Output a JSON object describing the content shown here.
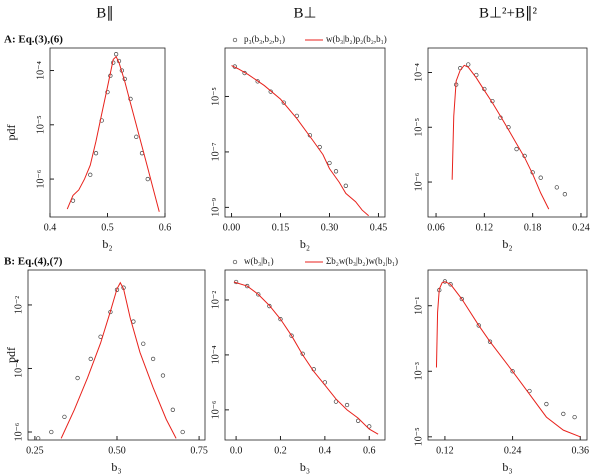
{
  "column_titles": [
    "B∥",
    "B⊥",
    "B⊥²+B∥²"
  ],
  "row_labels": [
    "A: Eq.(3),(6)",
    "B: Eq.(4),(7)"
  ],
  "chart_data": [
    {
      "type": "line",
      "log_y": true,
      "ylabel": "pdf",
      "xlabel": "b₂",
      "legend": false,
      "xlim": [
        0.4,
        0.6
      ],
      "xticks": [
        0.4,
        0.5,
        0.6
      ],
      "ylim": [
        2e-07,
        0.00026
      ],
      "yticks": [
        {
          "value": 0.0001,
          "label": "10⁻⁴"
        },
        {
          "value": 1e-05,
          "label": "10⁻⁵"
        },
        {
          "value": 1e-06,
          "label": "10⁻⁶"
        }
      ],
      "series": [
        {
          "kind": "scatter",
          "color": "#444444",
          "x": [
            0.44,
            0.47,
            0.48,
            0.49,
            0.5,
            0.505,
            0.51,
            0.515,
            0.52,
            0.525,
            0.53,
            0.54,
            0.55,
            0.56,
            0.57
          ],
          "values": [
            4e-07,
            1.2e-06,
            3e-06,
            1.2e-05,
            4e-05,
            8e-05,
            0.00014,
            0.0002,
            0.00015,
            0.0001,
            7e-05,
            3e-05,
            6e-06,
            3e-06,
            1e-06
          ]
        },
        {
          "kind": "line",
          "color": "#e8221c",
          "x": [
            0.43,
            0.44,
            0.45,
            0.46,
            0.47,
            0.48,
            0.49,
            0.5,
            0.51,
            0.515,
            0.52,
            0.53,
            0.54,
            0.55,
            0.56,
            0.57,
            0.58,
            0.59
          ],
          "values": [
            2.8e-07,
            5e-07,
            6.3e-07,
            1e-06,
            1.8e-06,
            5e-06,
            1.6e-05,
            5e-05,
            0.00016,
            0.00018,
            0.00014,
            6.3e-05,
            2.5e-05,
            1e-05,
            4e-06,
            1.6e-06,
            6.3e-07,
            2.5e-07
          ]
        }
      ]
    },
    {
      "type": "line",
      "log_y": true,
      "xlabel": "b₂",
      "legend": true,
      "xlim": [
        -0.02,
        0.47
      ],
      "xticks": [
        {
          "value": 0,
          "label": "0.00"
        },
        0.15,
        {
          "value": 0.3,
          "label": "0.30"
        },
        0.45
      ],
      "ylim": [
        4.5e-10,
        0.00056
      ],
      "yticks": [
        {
          "value": 1e-05,
          "label": "10⁻⁵"
        },
        {
          "value": 1e-07,
          "label": "10⁻⁷"
        },
        {
          "value": 1e-09,
          "label": "10⁻⁹"
        }
      ],
      "series": [
        {
          "name": "p₃(b₃,b₂,b₁)",
          "kind": "scatter",
          "color": "#444444",
          "x": [
            0.01,
            0.04,
            0.08,
            0.12,
            0.16,
            0.2,
            0.24,
            0.27,
            0.3,
            0.32,
            0.35
          ],
          "values": [
            0.00012,
            7e-05,
            3.5e-05,
            1.5e-05,
            6e-06,
            2e-06,
            4e-07,
            1.5e-07,
            4e-08,
            2e-08,
            6e-09
          ]
        },
        {
          "name": "w(b₃|b₂)p₂(b₂,b₁)",
          "kind": "line",
          "color": "#e8221c",
          "x": [
            0,
            0.02,
            0.05,
            0.1,
            0.15,
            0.2,
            0.25,
            0.28,
            0.3,
            0.33,
            0.35,
            0.38,
            0.4,
            0.42
          ],
          "values": [
            0.00013,
            0.0001,
            6.3e-05,
            2.5e-05,
            8e-06,
            1.6e-06,
            2.5e-07,
            8e-08,
            2.5e-08,
            8e-09,
            3.2e-09,
            1.6e-09,
            8e-10,
            5e-10
          ]
        }
      ]
    },
    {
      "type": "line",
      "log_y": true,
      "xlabel": "b₂",
      "legend": false,
      "xlim": [
        0.05,
        0.2475
      ],
      "xticks": [
        0.06,
        0.12,
        0.18,
        0.24
      ],
      "ylim": [
        2.3e-07,
        0.00028
      ],
      "yticks": [
        {
          "value": 0.0001,
          "label": "10⁻⁴"
        },
        {
          "value": 1e-05,
          "label": "10⁻⁵"
        },
        {
          "value": 1e-06,
          "label": "10⁻⁶"
        }
      ],
      "series": [
        {
          "kind": "scatter",
          "color": "#444444",
          "x": [
            0.085,
            0.09,
            0.1,
            0.11,
            0.12,
            0.13,
            0.14,
            0.15,
            0.16,
            0.17,
            0.18,
            0.19,
            0.21,
            0.22
          ],
          "values": [
            6e-05,
            0.00012,
            0.00014,
            9e-05,
            5e-05,
            3e-05,
            1.5e-05,
            1e-05,
            4e-06,
            3e-06,
            1.5e-06,
            1.2e-06,
            8e-07,
            6e-07
          ]
        },
        {
          "kind": "line",
          "color": "#e8221c",
          "x": [
            0.08,
            0.082,
            0.085,
            0.09,
            0.095,
            0.1,
            0.11,
            0.12,
            0.13,
            0.14,
            0.15,
            0.16,
            0.17,
            0.18,
            0.19,
            0.2
          ],
          "values": [
            1.1e-06,
            1.6e-05,
            7e-05,
            0.00011,
            0.000135,
            0.000125,
            8e-05,
            4.7e-05,
            2.8e-05,
            1.6e-05,
            9e-06,
            5e-06,
            2.8e-06,
            1.4e-06,
            6.3e-07,
            3.2e-07
          ]
        }
      ]
    },
    {
      "type": "line",
      "log_y": true,
      "ylabel": "pdf",
      "xlabel": "b₃",
      "legend": false,
      "xlim": [
        0.229,
        0.768
      ],
      "xticks": [
        0.25,
        {
          "value": 0.5,
          "label": "0.50"
        },
        0.75
      ],
      "ylim": [
        5.6e-07,
        0.126
      ],
      "yticks": [
        {
          "value": 0.01,
          "label": "10⁻²"
        },
        {
          "value": 0.0001,
          "label": "10⁻⁴"
        },
        {
          "value": 1e-06,
          "label": "10⁻⁶"
        }
      ],
      "series": [
        {
          "kind": "scatter",
          "color": "#444444",
          "x": [
            0.26,
            0.3,
            0.34,
            0.38,
            0.42,
            0.45,
            0.48,
            0.5,
            0.52,
            0.55,
            0.58,
            0.61,
            0.64,
            0.67,
            0.7
          ],
          "values": [
            6.3e-07,
            1e-06,
            3e-06,
            5e-05,
            0.0002,
            0.001,
            0.006,
            0.03,
            0.035,
            0.003,
            0.0006,
            0.0002,
            6e-05,
            5e-06,
            1e-06
          ]
        },
        {
          "kind": "line",
          "color": "#e8221c",
          "x": [
            0.33,
            0.37,
            0.41,
            0.45,
            0.48,
            0.5,
            0.51,
            0.52,
            0.54,
            0.57,
            0.61,
            0.65,
            0.68
          ],
          "values": [
            6.3e-07,
            5e-06,
            5e-05,
            0.00063,
            0.0063,
            0.032,
            0.05,
            0.032,
            0.004,
            0.00032,
            2.5e-05,
            2.5e-06,
            6.3e-07
          ]
        }
      ]
    },
    {
      "type": "line",
      "log_y": true,
      "xlabel": "b₃",
      "legend": true,
      "xlim": [
        -0.05,
        0.671
      ],
      "xticks": [
        {
          "value": 0,
          "label": "0.0"
        },
        0.2,
        0.4,
        0.6
      ],
      "ylim": [
        8e-08,
        0.123
      ],
      "yticks": [
        {
          "value": 0.01,
          "label": "10⁻²"
        },
        {
          "value": 0.0001,
          "label": "10⁻⁴"
        },
        {
          "value": 1e-06,
          "label": "10⁻⁶"
        }
      ],
      "series": [
        {
          "name": "w(b₃|b₁)",
          "kind": "scatter",
          "color": "#444444",
          "x": [
            0,
            0.05,
            0.1,
            0.15,
            0.2,
            0.25,
            0.3,
            0.35,
            0.4,
            0.45,
            0.5,
            0.55,
            0.6
          ],
          "values": [
            0.045,
            0.032,
            0.016,
            0.006,
            0.002,
            0.0005,
            0.00011,
            3e-05,
            1e-05,
            2e-06,
            1.5e-06,
            4e-07,
            2.5e-07
          ]
        },
        {
          "name": "Σb₂w(b₃|b₂)w(b₂|b₁)",
          "kind": "line",
          "color": "#e8221c",
          "x": [
            -0.01,
            0.05,
            0.1,
            0.15,
            0.2,
            0.25,
            0.3,
            0.35,
            0.4,
            0.45,
            0.5,
            0.55,
            0.6,
            0.64
          ],
          "values": [
            0.045,
            0.032,
            0.016,
            0.0063,
            0.002,
            0.0005,
            0.0001,
            2.5e-05,
            8e-06,
            2.5e-06,
            1e-06,
            5e-07,
            2e-07,
            1.3e-07
          ]
        }
      ]
    },
    {
      "type": "line",
      "log_y": true,
      "xlabel": "b₃",
      "legend": false,
      "xlim": [
        0.09,
        0.372
      ],
      "xticks": [
        0.12,
        0.24,
        0.36
      ],
      "ylim": [
        8e-06,
        1.23
      ],
      "yticks": [
        {
          "value": 0.1,
          "label": "10⁻¹"
        },
        {
          "value": 0.001,
          "label": "10⁻³"
        },
        {
          "value": 1e-05,
          "label": "10⁻⁵"
        }
      ],
      "series": [
        {
          "kind": "scatter",
          "color": "#444444",
          "x": [
            0.11,
            0.12,
            0.13,
            0.15,
            0.18,
            0.2,
            0.24,
            0.27,
            0.3,
            0.33,
            0.35
          ],
          "values": [
            0.3,
            0.55,
            0.45,
            0.16,
            0.025,
            0.008,
            0.001,
            0.00025,
            0.0001,
            5e-05,
            4e-05
          ]
        },
        {
          "kind": "line",
          "color": "#e8221c",
          "x": [
            0.105,
            0.107,
            0.11,
            0.115,
            0.12,
            0.13,
            0.15,
            0.18,
            0.2,
            0.24,
            0.27,
            0.3,
            0.33,
            0.36
          ],
          "values": [
            0.0013,
            0.063,
            0.32,
            0.5,
            0.54,
            0.45,
            0.16,
            0.025,
            0.008,
            0.001,
            0.0002,
            4e-05,
            1.6e-05,
            1e-05
          ]
        }
      ]
    }
  ]
}
